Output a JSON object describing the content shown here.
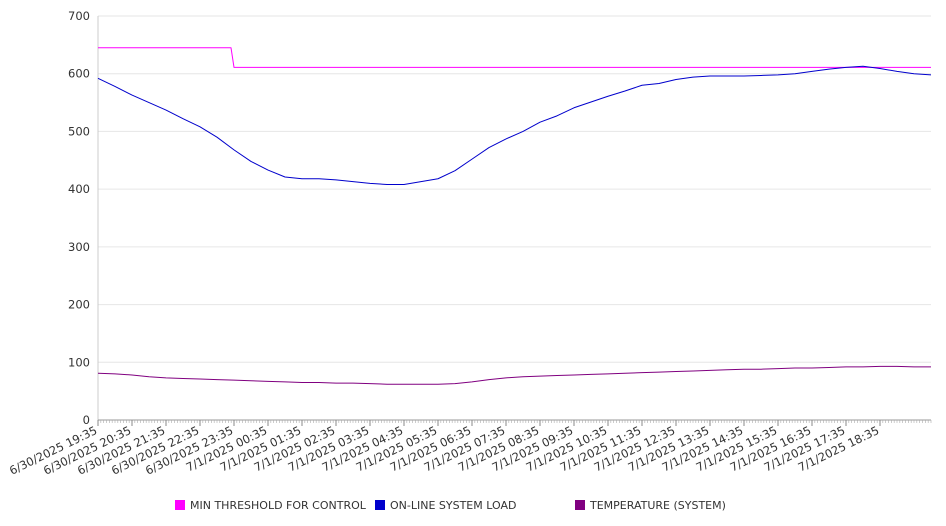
{
  "chart_data": {
    "type": "line",
    "title": "",
    "xlabel": "",
    "ylabel": "",
    "ylim": [
      0,
      700
    ],
    "yticks": [
      0,
      100,
      200,
      300,
      400,
      500,
      600,
      700
    ],
    "grid": true,
    "legend_position": "bottom",
    "xlim": [
      "6/30/2025 19:35",
      "7/1/2025 20:05"
    ],
    "x_tick_labels": [
      "6/30/2025 19:35",
      "6/30/2025 20:35",
      "6/30/2025 21:35",
      "6/30/2025 22:35",
      "6/30/2025 23:35",
      "7/1/2025 00:35",
      "7/1/2025 01:35",
      "7/1/2025 02:35",
      "7/1/2025 03:35",
      "7/1/2025 04:35",
      "7/1/2025 05:35",
      "7/1/2025 06:35",
      "7/1/2025 07:35",
      "7/1/2025 08:35",
      "7/1/2025 09:35",
      "7/1/2025 10:35",
      "7/1/2025 11:35",
      "7/1/2025 12:35",
      "7/1/2025 13:35",
      "7/1/2025 14:35",
      "7/1/2025 15:35",
      "7/1/2025 16:35",
      "7/1/2025 17:35",
      "7/1/2025 18:35"
    ],
    "x": [
      "6/30/2025 19:35",
      "6/30/2025 20:05",
      "6/30/2025 20:35",
      "6/30/2025 21:05",
      "6/30/2025 21:35",
      "6/30/2025 22:05",
      "6/30/2025 22:35",
      "6/30/2025 23:05",
      "6/30/2025 23:35",
      "7/1/2025 00:05",
      "7/1/2025 00:35",
      "7/1/2025 01:05",
      "7/1/2025 01:35",
      "7/1/2025 02:05",
      "7/1/2025 02:35",
      "7/1/2025 03:05",
      "7/1/2025 03:35",
      "7/1/2025 04:05",
      "7/1/2025 04:35",
      "7/1/2025 05:05",
      "7/1/2025 05:35",
      "7/1/2025 06:05",
      "7/1/2025 06:35",
      "7/1/2025 07:05",
      "7/1/2025 07:35",
      "7/1/2025 08:05",
      "7/1/2025 08:35",
      "7/1/2025 09:05",
      "7/1/2025 09:35",
      "7/1/2025 10:05",
      "7/1/2025 10:35",
      "7/1/2025 11:05",
      "7/1/2025 11:35",
      "7/1/2025 12:05",
      "7/1/2025 12:35",
      "7/1/2025 13:05",
      "7/1/2025 13:35",
      "7/1/2025 14:05",
      "7/1/2025 14:35",
      "7/1/2025 15:05",
      "7/1/2025 15:35",
      "7/1/2025 16:05",
      "7/1/2025 16:35",
      "7/1/2025 17:05",
      "7/1/2025 17:35",
      "7/1/2025 18:05",
      "7/1/2025 18:35",
      "7/1/2025 19:05",
      "7/1/2025 19:35",
      "7/1/2025 20:05"
    ],
    "series": [
      {
        "name": "MIN THRESHOLD FOR CONTROL",
        "color": "#ff00ff",
        "values": [
          645,
          645,
          645,
          645,
          645,
          645,
          645,
          645,
          611,
          611,
          611,
          611,
          611,
          611,
          611,
          611,
          611,
          611,
          611,
          611,
          611,
          611,
          611,
          611,
          611,
          611,
          611,
          611,
          611,
          611,
          611,
          611,
          611,
          611,
          611,
          611,
          611,
          611,
          611,
          611,
          611,
          611,
          611,
          611,
          611,
          611,
          611,
          611,
          611,
          611
        ]
      },
      {
        "name": "ON-LINE SYSTEM LOAD",
        "color": "#0000cc",
        "values": [
          592,
          578,
          563,
          550,
          537,
          522,
          508,
          490,
          468,
          448,
          433,
          421,
          418,
          418,
          416,
          413,
          410,
          408,
          408,
          413,
          418,
          432,
          452,
          472,
          487,
          500,
          516,
          527,
          541,
          551,
          561,
          570,
          580,
          583,
          590,
          594,
          596,
          596,
          596,
          597,
          598,
          600,
          604,
          608,
          611,
          613,
          609,
          604,
          600,
          598
        ]
      },
      {
        "name": "TEMPERATURE (SYSTEM)",
        "color": "#800080",
        "values": [
          81,
          80,
          78,
          75,
          73,
          72,
          71,
          70,
          69,
          68,
          67,
          66,
          65,
          65,
          64,
          64,
          63,
          62,
          62,
          62,
          62,
          63,
          66,
          70,
          73,
          75,
          76,
          77,
          78,
          79,
          80,
          81,
          82,
          83,
          84,
          85,
          86,
          87,
          88,
          88,
          89,
          90,
          90,
          91,
          92,
          92,
          93,
          93,
          92,
          92
        ]
      }
    ]
  }
}
